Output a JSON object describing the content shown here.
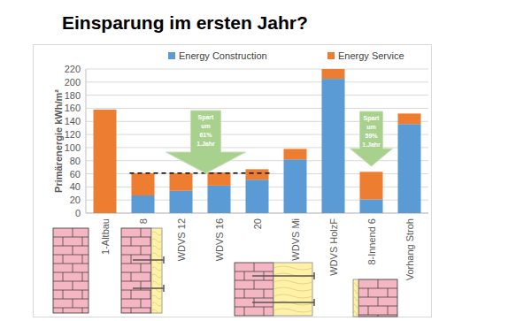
{
  "chart_data": {
    "type": "bar",
    "title": "Einsparung im ersten Jahr?",
    "y_label": "Primärenergie kWh/m²",
    "categories": [
      "1-Altbau",
      "8",
      "WDVS 12",
      "WDVS 16",
      "20",
      "WDVS Mi",
      "WDVS HolzF",
      "8-Innend 6",
      "Vorhang Stroh"
    ],
    "series": [
      {
        "name": "Energy Construction",
        "color": "#5b9bd5",
        "values": [
          0,
          27,
          34,
          42,
          51,
          82,
          205,
          21,
          136
        ]
      },
      {
        "name": "Energy Service",
        "color": "#ed7d31",
        "values": [
          158,
          34,
          27,
          20,
          16,
          16,
          15,
          42,
          16
        ]
      }
    ],
    "stacked": true,
    "ylim": [
      0,
      220
    ],
    "yticks": [
      0,
      20,
      40,
      60,
      80,
      100,
      120,
      140,
      160,
      180,
      200,
      220
    ],
    "grid": true,
    "legend": "top",
    "reference_line": {
      "value": 61,
      "from": "8",
      "to": "20"
    },
    "annotations": [
      {
        "lines": [
          "Spart",
          "um",
          "61%",
          "1.Jahr"
        ],
        "category": "WDVS 12"
      },
      {
        "lines": [
          "Spart",
          "um",
          "59%",
          "1.Jahr"
        ],
        "category": "8-Innend 6"
      }
    ]
  }
}
